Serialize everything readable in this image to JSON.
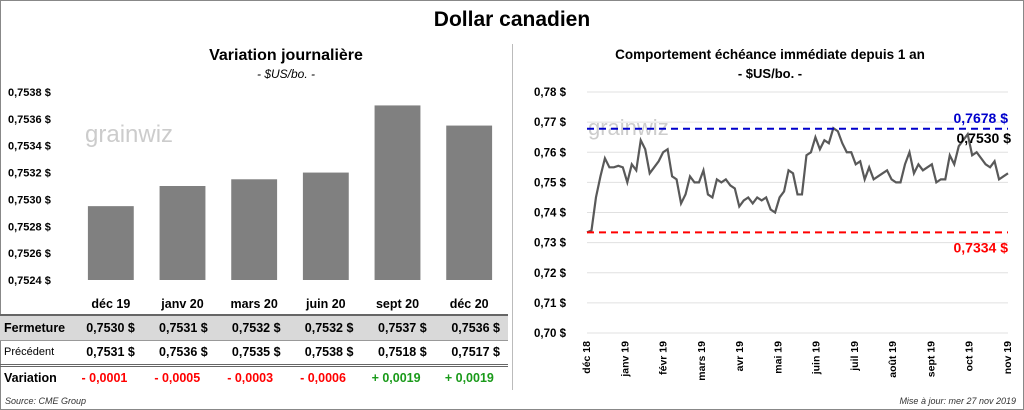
{
  "title": "Dollar canadien",
  "left": {
    "title": "Variation  journalière",
    "subtitle": "- $US/bo. -"
  },
  "right": {
    "title": "Comportement échéance immédiate depuis 1 an",
    "subtitle": "- $US/bo. -"
  },
  "watermark": "grainwiz",
  "chart_data": [
    {
      "type": "bar",
      "title": "Variation journalière",
      "subtitle": "- $US/bo. -",
      "categories": [
        "déc 19",
        "janv 20",
        "mars 20",
        "juin 20",
        "sept 20",
        "déc 20"
      ],
      "values": [
        0.75295,
        0.7531,
        0.75315,
        0.7532,
        0.7537,
        0.75355
      ],
      "ylim": [
        0.7524,
        0.7538
      ],
      "yticks": [
        "0,7524 $",
        "0,7526 $",
        "0,7528 $",
        "0,7530 $",
        "0,7532 $",
        "0,7534 $",
        "0,7536 $",
        "0,7538 $"
      ],
      "color": "#808080"
    },
    {
      "type": "line",
      "title": "Comportement échéance immédiate depuis 1 an",
      "subtitle": "- $US/bo. -",
      "xticks": [
        "déc 18",
        "janv 19",
        "févr 19",
        "mars 19",
        "avr 19",
        "mai 19",
        "juin 19",
        "juil 19",
        "août 19",
        "sept 19",
        "oct 19",
        "nov 19"
      ],
      "yticks": [
        "0,70 $",
        "0,71 $",
        "0,72 $",
        "0,73 $",
        "0,74 $",
        "0,75 $",
        "0,76 $",
        "0,77 $",
        "0,78 $"
      ],
      "ylim": [
        0.7,
        0.78
      ],
      "values": [
        0.7334,
        0.734,
        0.745,
        0.752,
        0.758,
        0.755,
        0.755,
        0.7555,
        0.755,
        0.75,
        0.756,
        0.754,
        0.764,
        0.761,
        0.753,
        0.755,
        0.757,
        0.76,
        0.761,
        0.752,
        0.751,
        0.743,
        0.746,
        0.752,
        0.75,
        0.75,
        0.754,
        0.746,
        0.745,
        0.751,
        0.75,
        0.751,
        0.749,
        0.748,
        0.742,
        0.744,
        0.745,
        0.743,
        0.745,
        0.744,
        0.745,
        0.741,
        0.74,
        0.745,
        0.747,
        0.754,
        0.753,
        0.746,
        0.746,
        0.759,
        0.76,
        0.765,
        0.761,
        0.764,
        0.763,
        0.768,
        0.767,
        0.763,
        0.76,
        0.76,
        0.756,
        0.757,
        0.751,
        0.755,
        0.751,
        0.752,
        0.753,
        0.754,
        0.751,
        0.75,
        0.75,
        0.756,
        0.76,
        0.753,
        0.756,
        0.754,
        0.755,
        0.756,
        0.75,
        0.751,
        0.751,
        0.759,
        0.756,
        0.762,
        0.764,
        0.766,
        0.759,
        0.76,
        0.758,
        0.756,
        0.755,
        0.757,
        0.751,
        0.752,
        0.753
      ],
      "max": {
        "value": 0.7678,
        "label": "0,7678 $",
        "color": "#0000cc"
      },
      "min": {
        "value": 0.7334,
        "label": "0,7334 $",
        "color": "#ff0000"
      },
      "last": {
        "label": "0,7530 $"
      },
      "line_color": "#595959"
    }
  ],
  "table": {
    "columns": [
      "déc 19",
      "janv 20",
      "mars 20",
      "juin 20",
      "sept 20",
      "déc 20"
    ],
    "rows": [
      {
        "label": "Fermeture",
        "values": [
          "0,7530  $",
          "0,7531  $",
          "0,7532  $",
          "0,7532  $",
          "0,7537  $",
          "0,7536  $"
        ]
      },
      {
        "label": "Précédent",
        "values": [
          "0,7531  $",
          "0,7536  $",
          "0,7535  $",
          "0,7538  $",
          "0,7518  $",
          "0,7517  $"
        ]
      },
      {
        "label": "Variation",
        "values": [
          "- 0,0001",
          "- 0,0005",
          "- 0,0003",
          "- 0,0006",
          "+ 0,0019",
          "+ 0,0019"
        ]
      }
    ]
  },
  "source": "Source: CME Group",
  "updated": "Mise à jour: mer 27 nov 2019"
}
